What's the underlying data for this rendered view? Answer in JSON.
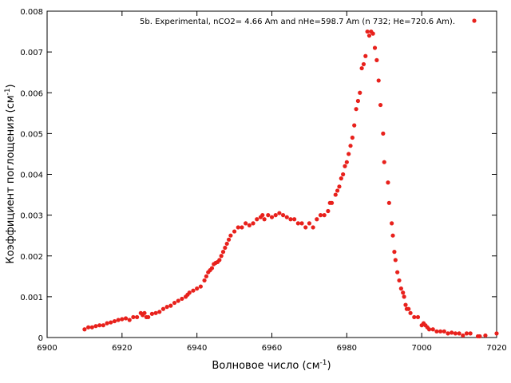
{
  "chart_data": {
    "type": "scatter",
    "title": "",
    "xlabel": "Волновое число (см",
    "xlabel_sup": "-1",
    "xlabel_end": ")",
    "ylabel": "Коэффициент поглощения (см",
    "ylabel_sup": "-1",
    "ylabel_end": ")",
    "xlim": [
      6900,
      7020
    ],
    "ylim": [
      0,
      0.008
    ],
    "xticks": [
      "6900",
      "6920",
      "6940",
      "6960",
      "6980",
      "7000",
      "7020"
    ],
    "yticks": [
      "0",
      "0.001",
      "0.002",
      "0.003",
      "0.004",
      "0.005",
      "0.006",
      "0.007",
      "0.008"
    ],
    "grid": false,
    "legend_position": "top-right",
    "series": [
      {
        "name": "5b. Experimental,  nCO2= 4.66 Am and nHe=598.7 Am (n  732; He=720.6 Am).",
        "color": "#e8211c",
        "x": [
          6910,
          6911,
          6912,
          6913,
          6914,
          6915,
          6916,
          6917,
          6918,
          6919,
          6920,
          6921,
          6922,
          6923,
          6924,
          6925,
          6925.5,
          6926,
          6926.5,
          6927,
          6928,
          6929,
          6930,
          6931,
          6932,
          6933,
          6934,
          6935,
          6936,
          6937,
          6937.5,
          6938,
          6939,
          6940,
          6941,
          6942,
          6942.5,
          6943,
          6943.5,
          6944,
          6944.5,
          6945,
          6945.5,
          6946,
          6946.5,
          6947,
          6947.5,
          6948,
          6948.5,
          6949,
          6950,
          6951,
          6952,
          6953,
          6954,
          6955,
          6956,
          6957,
          6957.5,
          6958,
          6959,
          6960,
          6961,
          6962,
          6963,
          6964,
          6965,
          6966,
          6967,
          6968,
          6969,
          6970,
          6971,
          6972,
          6973,
          6974,
          6975,
          6975.5,
          6976,
          6977,
          6977.5,
          6978,
          6978.5,
          6979,
          6979.5,
          6980,
          6980.5,
          6981,
          6981.5,
          6982,
          6982.5,
          6983,
          6983.5,
          6984,
          6984.5,
          6985,
          6985.5,
          6986,
          6986.5,
          6987,
          6987.5,
          6988,
          6988.5,
          6989,
          6989.7,
          6990,
          6991,
          6991.3,
          6992,
          6992.3,
          6992.7,
          6993,
          6993.5,
          6994,
          6994.5,
          6995,
          6995.3,
          6995.7,
          6996,
          6996.5,
          6997,
          6998,
          6999,
          7000,
          7000.5,
          7001,
          7001.5,
          7002,
          7003,
          7004,
          7005,
          7006,
          7007,
          7008,
          7009,
          7010,
          7011,
          7012,
          7013,
          7015,
          7015.5,
          7017,
          7020
        ],
        "y": [
          0.0002,
          0.00025,
          0.00025,
          0.00028,
          0.0003,
          0.0003,
          0.00035,
          0.00037,
          0.0004,
          0.00043,
          0.00045,
          0.00047,
          0.00043,
          0.0005,
          0.0005,
          0.0006,
          0.00055,
          0.0006,
          0.0005,
          0.0005,
          0.00058,
          0.0006,
          0.00063,
          0.0007,
          0.00075,
          0.00078,
          0.00085,
          0.0009,
          0.00095,
          0.001,
          0.00105,
          0.0011,
          0.00115,
          0.0012,
          0.00125,
          0.0014,
          0.0015,
          0.0016,
          0.00165,
          0.0017,
          0.0018,
          0.00183,
          0.00185,
          0.0019,
          0.002,
          0.0021,
          0.0022,
          0.0023,
          0.0024,
          0.0025,
          0.0026,
          0.0027,
          0.0027,
          0.0028,
          0.00275,
          0.0028,
          0.0029,
          0.00295,
          0.003,
          0.0029,
          0.003,
          0.00295,
          0.003,
          0.00305,
          0.003,
          0.00295,
          0.0029,
          0.0029,
          0.0028,
          0.0028,
          0.0027,
          0.0028,
          0.0027,
          0.0029,
          0.003,
          0.003,
          0.0031,
          0.0033,
          0.0033,
          0.0035,
          0.0036,
          0.0037,
          0.0039,
          0.004,
          0.0042,
          0.0043,
          0.0045,
          0.0047,
          0.0049,
          0.0052,
          0.0056,
          0.0058,
          0.006,
          0.0066,
          0.0067,
          0.0069,
          0.0075,
          0.0074,
          0.0075,
          0.00745,
          0.0071,
          0.0068,
          0.0063,
          0.0057,
          0.005,
          0.0043,
          0.0038,
          0.0033,
          0.0028,
          0.0025,
          0.0021,
          0.0019,
          0.0016,
          0.0014,
          0.0012,
          0.0011,
          0.001,
          0.0008,
          0.0007,
          0.0007,
          0.0006,
          0.0005,
          0.0005,
          0.0003,
          0.00035,
          0.0003,
          0.00025,
          0.0002,
          0.0002,
          0.00015,
          0.00015,
          0.00015,
          0.0001,
          0.00012,
          0.0001,
          0.0001,
          5e-05,
          0.0001,
          0.0001,
          3e-05,
          3e-05,
          5e-05,
          0.0001
        ]
      }
    ]
  }
}
